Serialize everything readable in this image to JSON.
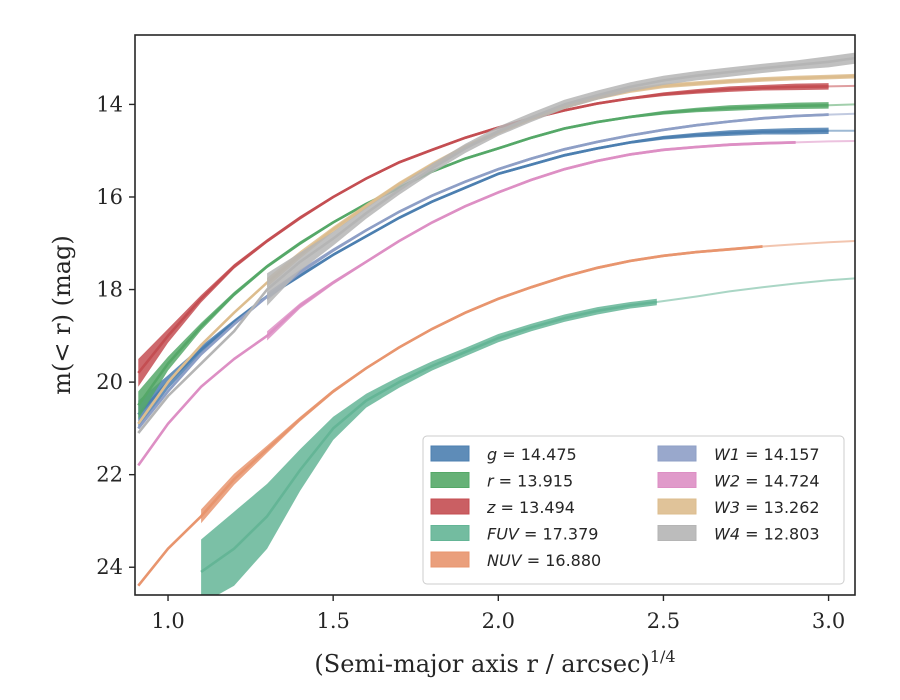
{
  "chart_data": {
    "type": "line",
    "xlabel": "(Semi-major axis r / arcsec)",
    "xlabel_sup": "1/4",
    "ylabel": "m(< r) (mag)",
    "xlim": [
      0.9,
      3.08
    ],
    "ylim": [
      24.6,
      12.5
    ],
    "y_inverted": true,
    "x_ticks": [
      1.0,
      1.5,
      2.0,
      2.5,
      3.0
    ],
    "x_tick_labels": [
      "1.0",
      "1.5",
      "2.0",
      "2.5",
      "3.0"
    ],
    "y_ticks": [
      14,
      16,
      18,
      20,
      22,
      24
    ],
    "y_tick_labels": [
      "14",
      "16",
      "18",
      "20",
      "22",
      "24"
    ],
    "grid": false,
    "legend_position": "lower-right",
    "legend_columns": 2,
    "series": [
      {
        "name": "g = 14.475",
        "legend_var": "g",
        "legend_val": "= 14.475",
        "color": "#4c7fb0",
        "x": [
          0.91,
          1.0,
          1.1,
          1.2,
          1.3,
          1.4,
          1.5,
          1.6,
          1.7,
          1.8,
          1.9,
          2.0,
          2.1,
          2.2,
          2.3,
          2.4,
          2.5,
          2.6,
          2.7,
          2.8,
          2.9,
          3.0,
          3.08
        ],
        "y": [
          20.7,
          20.0,
          19.3,
          18.7,
          18.15,
          17.7,
          17.25,
          16.85,
          16.45,
          16.1,
          15.8,
          15.5,
          15.3,
          15.1,
          14.95,
          14.82,
          14.72,
          14.66,
          14.62,
          14.59,
          14.58,
          14.57,
          14.57
        ],
        "halo": [
          0.3,
          0.15,
          0.08,
          0.05,
          0.04,
          0.04,
          0.03,
          0.03,
          0.03,
          0.03,
          0.03,
          0.03,
          0.03,
          0.03,
          0.03,
          0.03,
          0.04,
          0.05,
          0.06,
          0.06,
          0.07,
          0.07,
          0.0
        ],
        "solid_until": 3.05
      },
      {
        "name": "r = 13.915",
        "legend_var": "r",
        "legend_val": "= 13.915",
        "color": "#55a868",
        "x": [
          0.91,
          1.0,
          1.1,
          1.2,
          1.3,
          1.4,
          1.5,
          1.6,
          1.7,
          1.8,
          1.9,
          2.0,
          2.1,
          2.2,
          2.3,
          2.4,
          2.5,
          2.6,
          2.7,
          2.8,
          2.9,
          3.0,
          3.08
        ],
        "y": [
          20.5,
          19.6,
          18.8,
          18.1,
          17.5,
          17.0,
          16.55,
          16.15,
          15.8,
          15.45,
          15.17,
          14.95,
          14.72,
          14.52,
          14.38,
          14.27,
          14.18,
          14.12,
          14.08,
          14.05,
          14.03,
          14.02,
          14.0
        ],
        "halo": [
          0.3,
          0.15,
          0.08,
          0.05,
          0.04,
          0.04,
          0.03,
          0.03,
          0.03,
          0.03,
          0.03,
          0.03,
          0.03,
          0.03,
          0.03,
          0.03,
          0.04,
          0.05,
          0.06,
          0.06,
          0.07,
          0.07,
          0.0
        ],
        "solid_until": 3.05
      },
      {
        "name": "z = 13.494",
        "legend_var": "z",
        "legend_val": "= 13.494",
        "color": "#c44e52",
        "x": [
          0.91,
          1.0,
          1.1,
          1.2,
          1.3,
          1.4,
          1.5,
          1.6,
          1.7,
          1.8,
          1.9,
          2.0,
          2.1,
          2.2,
          2.3,
          2.4,
          2.5,
          2.6,
          2.7,
          2.8,
          2.9,
          3.0,
          3.08
        ],
        "y": [
          19.8,
          19.0,
          18.2,
          17.5,
          16.95,
          16.45,
          16.0,
          15.6,
          15.25,
          14.98,
          14.72,
          14.5,
          14.3,
          14.13,
          13.98,
          13.87,
          13.78,
          13.72,
          13.67,
          13.64,
          13.62,
          13.61,
          13.6
        ],
        "halo": [
          0.3,
          0.15,
          0.08,
          0.05,
          0.04,
          0.04,
          0.03,
          0.03,
          0.03,
          0.03,
          0.03,
          0.03,
          0.03,
          0.03,
          0.03,
          0.03,
          0.04,
          0.05,
          0.06,
          0.06,
          0.07,
          0.07,
          0.0
        ],
        "solid_until": 3.05
      },
      {
        "name": "FUV = 17.379",
        "legend_var": "FUV",
        "legend_val": "= 17.379",
        "color": "#64b596",
        "x": [
          1.1,
          1.2,
          1.3,
          1.4,
          1.5,
          1.6,
          1.7,
          1.8,
          1.9,
          2.0,
          2.1,
          2.2,
          2.3,
          2.4,
          2.48,
          2.6,
          2.7,
          2.8,
          2.9,
          3.0,
          3.08
        ],
        "y": [
          24.1,
          23.6,
          22.9,
          21.9,
          21.0,
          20.4,
          20.0,
          19.65,
          19.35,
          19.05,
          18.82,
          18.62,
          18.46,
          18.34,
          18.27,
          18.15,
          18.04,
          17.95,
          17.87,
          17.8,
          17.76
        ],
        "halo": [
          0.7,
          0.8,
          0.7,
          0.45,
          0.25,
          0.15,
          0.12,
          0.1,
          0.09,
          0.09,
          0.08,
          0.08,
          0.08,
          0.07,
          0.07,
          0.0,
          0.0,
          0.0,
          0.0,
          0.0,
          0.0
        ],
        "solid_until": 2.48
      },
      {
        "name": "NUV = 16.880",
        "legend_var": "NUV",
        "legend_val": "= 16.880",
        "color": "#e8956e",
        "x": [
          0.91,
          1.0,
          1.1,
          1.2,
          1.3,
          1.4,
          1.5,
          1.6,
          1.7,
          1.8,
          1.9,
          2.0,
          2.1,
          2.2,
          2.3,
          2.4,
          2.5,
          2.6,
          2.7,
          2.8,
          2.9,
          3.0,
          3.08
        ],
        "y": [
          24.4,
          23.6,
          22.9,
          22.1,
          21.45,
          20.8,
          20.2,
          19.7,
          19.25,
          18.85,
          18.5,
          18.2,
          17.95,
          17.72,
          17.53,
          17.38,
          17.27,
          17.19,
          17.13,
          17.07,
          17.02,
          16.98,
          16.95
        ],
        "halo": [
          0.0,
          0.0,
          0.15,
          0.12,
          0.08,
          0.05,
          0.04,
          0.03,
          0.03,
          0.03,
          0.03,
          0.03,
          0.03,
          0.03,
          0.03,
          0.03,
          0.03,
          0.03,
          0.03,
          0.03,
          0.0,
          0.0,
          0.0
        ],
        "solid_until": 2.8
      },
      {
        "name": "W1 = 14.157",
        "legend_var": "W1",
        "legend_val": "= 14.157",
        "color": "#8e9fc6",
        "x": [
          0.91,
          1.0,
          1.1,
          1.2,
          1.3,
          1.4,
          1.5,
          1.6,
          1.7,
          1.8,
          1.9,
          2.0,
          2.1,
          2.2,
          2.3,
          2.4,
          2.5,
          2.6,
          2.7,
          2.8,
          2.9,
          3.0,
          3.08
        ],
        "y": [
          21.0,
          20.2,
          19.4,
          18.75,
          18.15,
          17.62,
          17.15,
          16.72,
          16.32,
          15.97,
          15.67,
          15.4,
          15.17,
          14.97,
          14.81,
          14.67,
          14.55,
          14.45,
          14.37,
          14.3,
          14.25,
          14.22,
          14.2
        ],
        "halo": [
          0.0,
          0.0,
          0.0,
          0.0,
          0.08,
          0.05,
          0.04,
          0.03,
          0.03,
          0.03,
          0.03,
          0.03,
          0.03,
          0.03,
          0.03,
          0.03,
          0.03,
          0.03,
          0.03,
          0.03,
          0.03,
          0.03,
          0.0
        ],
        "solid_until": 3.0
      },
      {
        "name": "W2 = 14.724",
        "legend_var": "W2",
        "legend_val": "= 14.724",
        "color": "#dd8fc4",
        "x": [
          0.91,
          1.0,
          1.1,
          1.2,
          1.3,
          1.4,
          1.5,
          1.6,
          1.7,
          1.8,
          1.9,
          2.0,
          2.1,
          2.2,
          2.3,
          2.4,
          2.5,
          2.6,
          2.7,
          2.8,
          2.9,
          3.0,
          3.08
        ],
        "y": [
          21.8,
          20.9,
          20.1,
          19.5,
          19.0,
          18.35,
          17.85,
          17.4,
          16.95,
          16.55,
          16.2,
          15.9,
          15.63,
          15.4,
          15.22,
          15.08,
          14.98,
          14.92,
          14.87,
          14.84,
          14.82,
          14.8,
          14.79
        ],
        "halo": [
          0.0,
          0.0,
          0.0,
          0.0,
          0.1,
          0.06,
          0.04,
          0.03,
          0.03,
          0.03,
          0.03,
          0.03,
          0.03,
          0.03,
          0.03,
          0.03,
          0.03,
          0.03,
          0.03,
          0.03,
          0.03,
          0.0,
          0.0
        ],
        "solid_until": 2.93
      },
      {
        "name": "W3 = 13.262",
        "legend_var": "W3",
        "legend_val": "= 13.262",
        "color": "#ddbd8e",
        "x": [
          0.91,
          1.0,
          1.1,
          1.2,
          1.3,
          1.4,
          1.5,
          1.6,
          1.7,
          1.8,
          1.9,
          2.0,
          2.1,
          2.2,
          2.3,
          2.4,
          2.5,
          2.6,
          2.7,
          2.8,
          2.9,
          3.0,
          3.08
        ],
        "y": [
          20.9,
          20.0,
          19.2,
          18.5,
          17.85,
          17.25,
          16.7,
          16.2,
          15.72,
          15.3,
          14.92,
          14.6,
          14.3,
          14.05,
          13.85,
          13.7,
          13.6,
          13.55,
          13.5,
          13.46,
          13.43,
          13.41,
          13.39
        ],
        "halo": [
          0.0,
          0.0,
          0.0,
          0.0,
          0.1,
          0.08,
          0.06,
          0.05,
          0.05,
          0.05,
          0.05,
          0.05,
          0.05,
          0.05,
          0.05,
          0.05,
          0.05,
          0.05,
          0.05,
          0.05,
          0.05,
          0.05,
          0.05
        ],
        "solid_until": 3.08
      },
      {
        "name": "W4 = 12.803",
        "legend_var": "W4",
        "legend_val": "= 12.803",
        "color": "#b5b5b5",
        "x": [
          0.91,
          1.0,
          1.1,
          1.2,
          1.3,
          1.4,
          1.5,
          1.6,
          1.7,
          1.8,
          1.9,
          2.0,
          2.1,
          2.2,
          2.3,
          2.4,
          2.5,
          2.6,
          2.7,
          2.8,
          2.9,
          3.0,
          3.08
        ],
        "y": [
          21.1,
          20.3,
          19.6,
          18.9,
          18.0,
          17.4,
          16.9,
          16.35,
          15.85,
          15.38,
          14.95,
          14.58,
          14.28,
          14.0,
          13.8,
          13.62,
          13.48,
          13.38,
          13.3,
          13.22,
          13.15,
          13.08,
          13.0
        ],
        "halo": [
          0.0,
          0.0,
          0.0,
          0.0,
          0.35,
          0.2,
          0.15,
          0.12,
          0.1,
          0.1,
          0.1,
          0.1,
          0.1,
          0.1,
          0.1,
          0.1,
          0.1,
          0.1,
          0.1,
          0.1,
          0.1,
          0.12,
          0.12
        ],
        "solid_until": 3.08
      }
    ]
  }
}
